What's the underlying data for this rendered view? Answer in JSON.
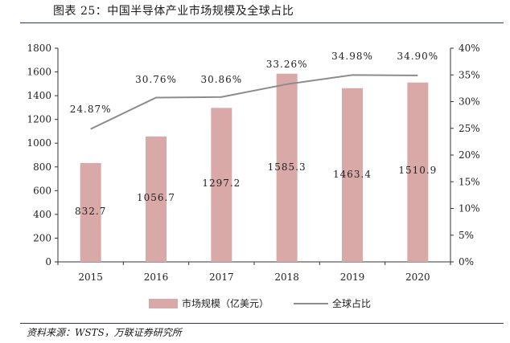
{
  "title": "图表 25：中国半导体产业市场规模及全球占比",
  "source": "资料来源：WSTS，万联证券研究所",
  "chart_data": {
    "type": "bar",
    "categories": [
      "2015",
      "2016",
      "2017",
      "2018",
      "2019",
      "2020"
    ],
    "series": [
      {
        "name": "市场规模（亿美元）",
        "type": "bar",
        "axis": "left",
        "color": "#d9a9a8",
        "values": [
          832.7,
          1056.7,
          1297.2,
          1585.3,
          1463.4,
          1510.9
        ],
        "labels": [
          "832.7",
          "1056.7",
          "1297.2",
          "1585.3",
          "1463.4",
          "1510.9"
        ]
      },
      {
        "name": "全球占比",
        "type": "line",
        "axis": "right",
        "color": "#8c8c8c",
        "values": [
          24.87,
          30.76,
          30.86,
          33.26,
          34.98,
          34.9
        ],
        "labels": [
          "24.87%",
          "30.76%",
          "30.86%",
          "33.26%",
          "34.98%",
          "34.90%"
        ]
      }
    ],
    "y_left": {
      "min": 0,
      "max": 1800,
      "ticks": [
        0,
        200,
        400,
        600,
        800,
        1000,
        1200,
        1400,
        1600,
        1800
      ],
      "tick_labels": [
        "0",
        "200",
        "400",
        "600",
        "800",
        "1000",
        "1200",
        "1400",
        "1600",
        "1800"
      ]
    },
    "y_right": {
      "min": 0,
      "max": 40,
      "ticks": [
        0,
        5,
        10,
        15,
        20,
        25,
        30,
        35,
        40
      ],
      "tick_labels": [
        "0%",
        "5%",
        "10%",
        "15%",
        "20%",
        "25%",
        "30%",
        "35%",
        "40%"
      ]
    },
    "grid": false,
    "legend_position": "bottom"
  }
}
